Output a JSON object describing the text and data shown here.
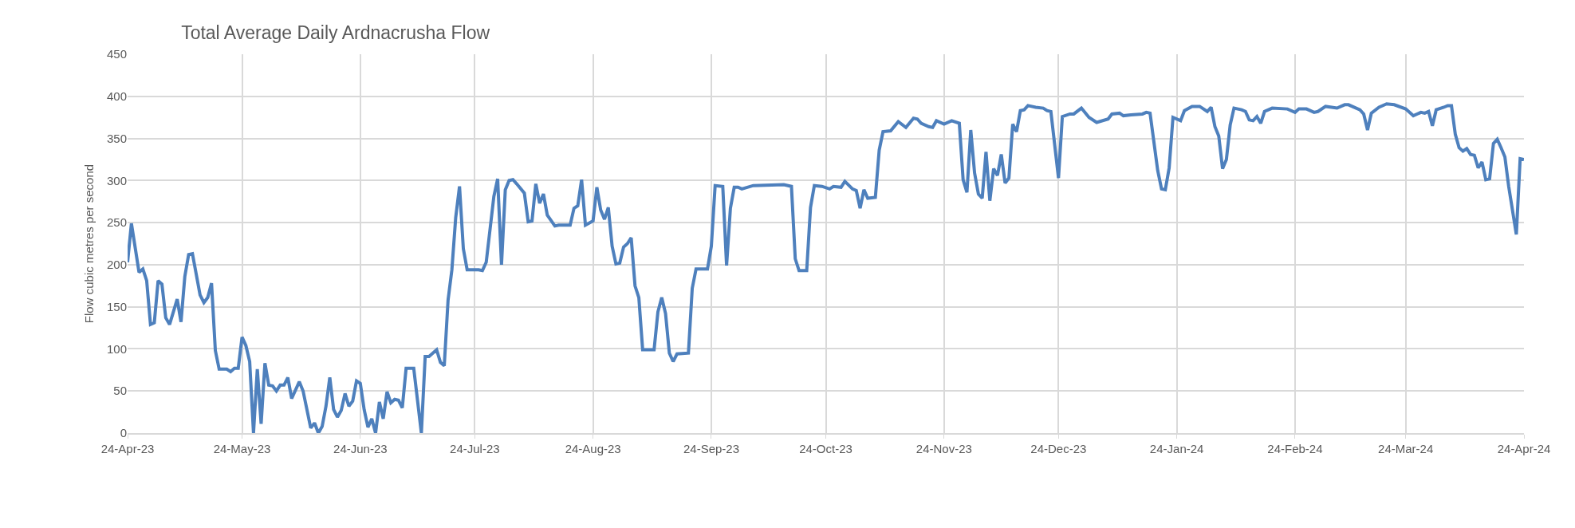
{
  "chart_data": {
    "type": "line",
    "title": "Total Average Daily Ardnacrusha Flow",
    "ylabel": "Flow cubic metres per second",
    "x": [
      "2023-04-24",
      "2023-04-25",
      "2023-04-27",
      "2023-04-28",
      "2023-04-29",
      "2023-04-30",
      "2023-05-01",
      "2023-05-02",
      "2023-05-03",
      "2023-05-04",
      "2023-05-05",
      "2023-05-07",
      "2023-05-08",
      "2023-05-09",
      "2023-05-10",
      "2023-05-11",
      "2023-05-13",
      "2023-05-14",
      "2023-05-15",
      "2023-05-16",
      "2023-05-17",
      "2023-05-18",
      "2023-05-20",
      "2023-05-21",
      "2023-05-22",
      "2023-05-23",
      "2023-05-24",
      "2023-05-25",
      "2023-05-26",
      "2023-05-27",
      "2023-05-28",
      "2023-05-29",
      "2023-05-30",
      "2023-05-31",
      "2023-06-01",
      "2023-06-02",
      "2023-06-03",
      "2023-06-04",
      "2023-06-05",
      "2023-06-06",
      "2023-06-08",
      "2023-06-09",
      "2023-06-11",
      "2023-06-12",
      "2023-06-13",
      "2023-06-14",
      "2023-06-15",
      "2023-06-16",
      "2023-06-17",
      "2023-06-18",
      "2023-06-19",
      "2023-06-20",
      "2023-06-21",
      "2023-06-22",
      "2023-06-23",
      "2023-06-24",
      "2023-06-25",
      "2023-06-26",
      "2023-06-27",
      "2023-06-28",
      "2023-06-29",
      "2023-06-30",
      "2023-07-01",
      "2023-07-02",
      "2023-07-03",
      "2023-07-04",
      "2023-07-05",
      "2023-07-06",
      "2023-07-08",
      "2023-07-10",
      "2023-07-11",
      "2023-07-12",
      "2023-07-14",
      "2023-07-15",
      "2023-07-16",
      "2023-07-17",
      "2023-07-18",
      "2023-07-19",
      "2023-07-20",
      "2023-07-21",
      "2023-07-22",
      "2023-07-25",
      "2023-07-26",
      "2023-07-27",
      "2023-07-29",
      "2023-07-30",
      "2023-07-31",
      "2023-08-01",
      "2023-08-02",
      "2023-08-03",
      "2023-08-04",
      "2023-08-06",
      "2023-08-07",
      "2023-08-08",
      "2023-08-09",
      "2023-08-10",
      "2023-08-11",
      "2023-08-12",
      "2023-08-14",
      "2023-08-15",
      "2023-08-18",
      "2023-08-19",
      "2023-08-20",
      "2023-08-21",
      "2023-08-22",
      "2023-08-24",
      "2023-08-25",
      "2023-08-26",
      "2023-08-27",
      "2023-08-28",
      "2023-08-29",
      "2023-08-30",
      "2023-08-31",
      "2023-09-01",
      "2023-09-02",
      "2023-09-03",
      "2023-09-04",
      "2023-09-05",
      "2023-09-06",
      "2023-09-09",
      "2023-09-10",
      "2023-09-11",
      "2023-09-12",
      "2023-09-13",
      "2023-09-14",
      "2023-09-15",
      "2023-09-18",
      "2023-09-19",
      "2023-09-20",
      "2023-09-23",
      "2023-09-24",
      "2023-09-25",
      "2023-09-27",
      "2023-09-28",
      "2023-09-29",
      "2023-09-30",
      "2023-10-01",
      "2023-10-02",
      "2023-10-05",
      "2023-10-13",
      "2023-10-15",
      "2023-10-16",
      "2023-10-17",
      "2023-10-19",
      "2023-10-20",
      "2023-10-21",
      "2023-10-23",
      "2023-10-25",
      "2023-10-26",
      "2023-10-28",
      "2023-10-29",
      "2023-10-31",
      "2023-11-01",
      "2023-11-02",
      "2023-11-03",
      "2023-11-04",
      "2023-11-06",
      "2023-11-07",
      "2023-11-08",
      "2023-11-10",
      "2023-11-12",
      "2023-11-14",
      "2023-11-16",
      "2023-11-17",
      "2023-11-18",
      "2023-11-20",
      "2023-11-21",
      "2023-11-22",
      "2023-11-24",
      "2023-11-26",
      "2023-11-28",
      "2023-11-29",
      "2023-11-30",
      "2023-12-01",
      "2023-12-02",
      "2023-12-03",
      "2023-12-04",
      "2023-12-05",
      "2023-12-06",
      "2023-12-07",
      "2023-12-08",
      "2023-12-09",
      "2023-12-10",
      "2023-12-11",
      "2023-12-12",
      "2023-12-13",
      "2023-12-14",
      "2023-12-15",
      "2023-12-16",
      "2023-12-18",
      "2023-12-20",
      "2023-12-21",
      "2023-12-22",
      "2023-12-24",
      "2023-12-25",
      "2023-12-27",
      "2023-12-28",
      "2023-12-30",
      "2024-01-01",
      "2024-01-03",
      "2024-01-06",
      "2024-01-07",
      "2024-01-09",
      "2024-01-10",
      "2024-01-12",
      "2024-01-15",
      "2024-01-16",
      "2024-01-17",
      "2024-01-19",
      "2024-01-20",
      "2024-01-21",
      "2024-01-22",
      "2024-01-23",
      "2024-01-25",
      "2024-01-26",
      "2024-01-28",
      "2024-01-30",
      "2024-02-01",
      "2024-02-02",
      "2024-02-03",
      "2024-02-04",
      "2024-02-05",
      "2024-02-06",
      "2024-02-07",
      "2024-02-08",
      "2024-02-10",
      "2024-02-11",
      "2024-02-12",
      "2024-02-13",
      "2024-02-14",
      "2024-02-15",
      "2024-02-16",
      "2024-02-18",
      "2024-02-22",
      "2024-02-24",
      "2024-02-25",
      "2024-02-27",
      "2024-02-29",
      "2024-03-01",
      "2024-03-03",
      "2024-03-06",
      "2024-03-08",
      "2024-03-09",
      "2024-03-12",
      "2024-03-13",
      "2024-03-14",
      "2024-03-15",
      "2024-03-17",
      "2024-03-19",
      "2024-03-21",
      "2024-03-24",
      "2024-03-25",
      "2024-03-26",
      "2024-03-28",
      "2024-03-29",
      "2024-03-30",
      "2024-03-31",
      "2024-04-01",
      "2024-04-03",
      "2024-04-04",
      "2024-04-05",
      "2024-04-06",
      "2024-04-07",
      "2024-04-08",
      "2024-04-09",
      "2024-04-10",
      "2024-04-11",
      "2024-04-12",
      "2024-04-13",
      "2024-04-14",
      "2024-04-15",
      "2024-04-16",
      "2024-04-17",
      "2024-04-18",
      "2024-04-19",
      "2024-04-20",
      "2024-04-22",
      "2024-04-23",
      "2024-04-24"
    ],
    "series": [
      {
        "color": "#4e80bd",
        "values": [
          203,
          249,
          191,
          195,
          181,
          129,
          131,
          181,
          177,
          137,
          129,
          159,
          132,
          186,
          212,
          213,
          164,
          155,
          161,
          178,
          98,
          76,
          76,
          73,
          77,
          77,
          114,
          104,
          85,
          0,
          76,
          11,
          83,
          57,
          56,
          50,
          57,
          57,
          66,
          41,
          61,
          50,
          6,
          12,
          0,
          8,
          32,
          66,
          28,
          19,
          27,
          47,
          32,
          38,
          62,
          59,
          28,
          7,
          17,
          0,
          37,
          17,
          49,
          36,
          40,
          39,
          30,
          77,
          77,
          0,
          91,
          91,
          99,
          84,
          80,
          158,
          194,
          256,
          293,
          219,
          194,
          194,
          193,
          203,
          281,
          302,
          200,
          289,
          300,
          301,
          296,
          285,
          251,
          252,
          296,
          273,
          284,
          259,
          246,
          247,
          247,
          267,
          270,
          301,
          247,
          252,
          292,
          265,
          254,
          268,
          222,
          201,
          202,
          221,
          225,
          232,
          175,
          161,
          99,
          99,
          144,
          161,
          142,
          95,
          85,
          94,
          95,
          172,
          195,
          195,
          222,
          294,
          293,
          199,
          267,
          292,
          292,
          290,
          294,
          295,
          293,
          207,
          193,
          193,
          268,
          294,
          293,
          290,
          293,
          292,
          299,
          290,
          288,
          267,
          289,
          279,
          280,
          336,
          358,
          359,
          370,
          363,
          374,
          373,
          368,
          364,
          363,
          371,
          367,
          371,
          368,
          301,
          286,
          360,
          309,
          284,
          279,
          334,
          276,
          314,
          306,
          331,
          297,
          303,
          367,
          358,
          383,
          384,
          389,
          387,
          386,
          383,
          382,
          303,
          376,
          379,
          379,
          386,
          375,
          369,
          373,
          379,
          380,
          377,
          378,
          379,
          381,
          380,
          312,
          290,
          289,
          315,
          375,
          371,
          383,
          388,
          388,
          382,
          387,
          364,
          353,
          314,
          325,
          366,
          386,
          384,
          382,
          372,
          371,
          376,
          368,
          382,
          386,
          385,
          381,
          385,
          385,
          381,
          382,
          388,
          386,
          390,
          390,
          384,
          379,
          360,
          380,
          387,
          391,
          390,
          385,
          381,
          377,
          381,
          380,
          382,
          365,
          384,
          387,
          389,
          389,
          355,
          339,
          335,
          338,
          331,
          330,
          315,
          322,
          301,
          302,
          344,
          349,
          339,
          328,
          293,
          236,
          326,
          325
        ]
      }
    ],
    "xlim": [
      "2023-04-24",
      "2024-04-24"
    ],
    "xticks": [
      {
        "value": "2023-04-24",
        "label": "24-Apr-23"
      },
      {
        "value": "2023-05-24",
        "label": "24-May-23"
      },
      {
        "value": "2023-06-24",
        "label": "24-Jun-23"
      },
      {
        "value": "2023-07-24",
        "label": "24-Jul-23"
      },
      {
        "value": "2023-08-24",
        "label": "24-Aug-23"
      },
      {
        "value": "2023-09-24",
        "label": "24-Sep-23"
      },
      {
        "value": "2023-10-24",
        "label": "24-Oct-23"
      },
      {
        "value": "2023-11-24",
        "label": "24-Nov-23"
      },
      {
        "value": "2023-12-24",
        "label": "24-Dec-23"
      },
      {
        "value": "2024-01-24",
        "label": "24-Jan-24"
      },
      {
        "value": "2024-02-24",
        "label": "24-Feb-24"
      },
      {
        "value": "2024-03-24",
        "label": "24-Mar-24"
      },
      {
        "value": "2024-04-24",
        "label": "24-Apr-24"
      }
    ],
    "ylim": [
      0,
      450
    ],
    "yticks": [
      0,
      50,
      100,
      150,
      200,
      250,
      300,
      350,
      400,
      450
    ],
    "grid": true,
    "marker": "none",
    "line_style": "solid"
  }
}
